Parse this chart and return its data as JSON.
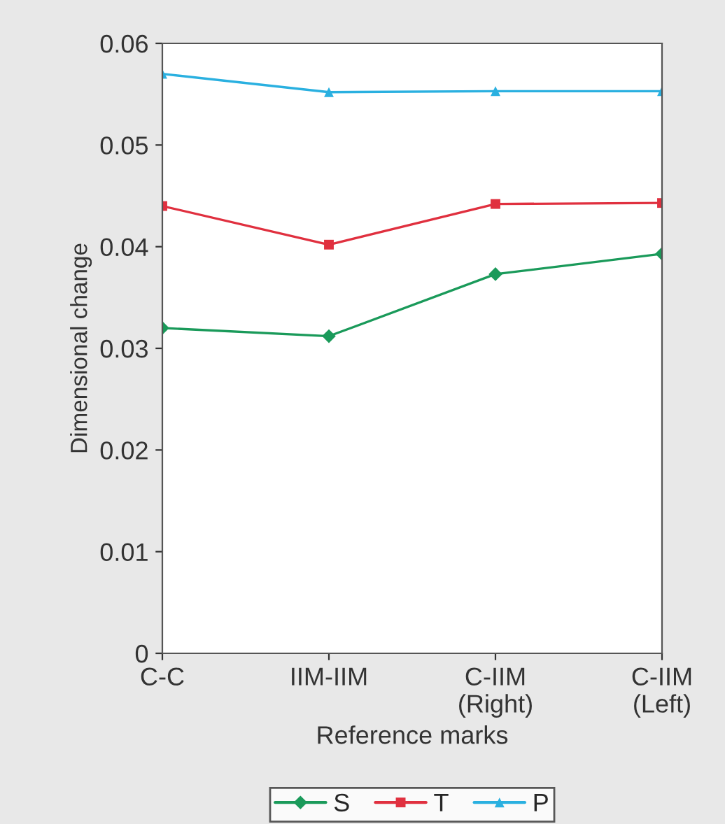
{
  "chart_data": {
    "type": "line",
    "xlabel": "Reference marks",
    "ylabel": "Dimensional change",
    "categories": [
      "C-C",
      "IIM-IIM",
      "C-IIM\n(Right)",
      "C-IIM\n(Left)"
    ],
    "series": [
      {
        "name": "S",
        "color": "#1a9a5a",
        "marker": "diamond",
        "values": [
          0.032,
          0.0312,
          0.0373,
          0.0393
        ]
      },
      {
        "name": "T",
        "color": "#e0303f",
        "marker": "square",
        "values": [
          0.044,
          0.0402,
          0.0442,
          0.0443
        ]
      },
      {
        "name": "P",
        "color": "#2ab0e0",
        "marker": "triangle",
        "values": [
          0.057,
          0.0552,
          0.0553,
          0.0553
        ]
      }
    ],
    "ylim": [
      0,
      0.06
    ],
    "yticks": [
      {
        "value": 0,
        "label": "0"
      },
      0.01,
      0.02,
      0.03,
      0.04,
      0.05,
      0.06
    ],
    "grid": false,
    "legend": "bottom"
  }
}
